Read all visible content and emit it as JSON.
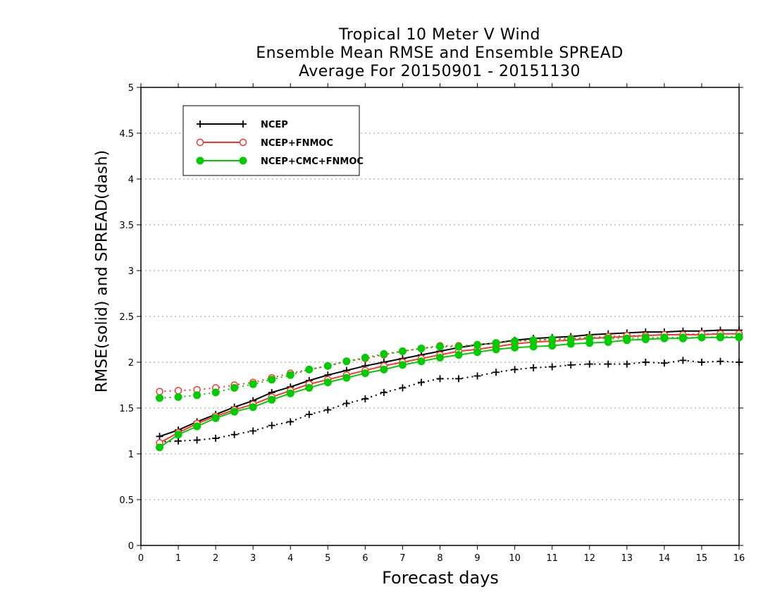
{
  "chart_data": {
    "type": "line",
    "title_lines": [
      "Tropical 10 Meter V Wind",
      "Ensemble Mean RMSE and Ensemble SPREAD",
      "Average For 20150901 - 20151130"
    ],
    "xlabel": "Forecast days",
    "ylabel": "RMSE(solid) and SPREAD(dash)",
    "xlim": [
      0,
      16
    ],
    "ylim": [
      0,
      5
    ],
    "xticks": [
      "0",
      "1",
      "2",
      "3",
      "4",
      "5",
      "6",
      "7",
      "8",
      "9",
      "10",
      "11",
      "12",
      "13",
      "14",
      "15",
      "16"
    ],
    "yticks": [
      "0",
      "0.5",
      "1",
      "1.5",
      "2",
      "2.5",
      "3",
      "3.5",
      "4",
      "4.5",
      "5"
    ],
    "grid": "horizontal dotted",
    "legend_position": "top-left",
    "x": [
      0.5,
      1,
      1.5,
      2,
      2.5,
      3,
      3.5,
      4,
      4.5,
      5,
      5.5,
      6,
      6.5,
      7,
      7.5,
      8,
      8.5,
      9,
      9.5,
      10,
      10.5,
      11,
      11.5,
      12,
      12.5,
      13,
      13.5,
      14,
      14.5,
      15,
      15.5,
      16
    ],
    "series": [
      {
        "name": "NCEP",
        "color": "#000000",
        "marker": "plus",
        "rmse": [
          1.19,
          1.26,
          1.35,
          1.43,
          1.51,
          1.58,
          1.67,
          1.73,
          1.8,
          1.86,
          1.91,
          1.96,
          2.0,
          2.04,
          2.08,
          2.12,
          2.16,
          2.19,
          2.21,
          2.24,
          2.26,
          2.27,
          2.28,
          2.3,
          2.31,
          2.32,
          2.33,
          2.33,
          2.34,
          2.34,
          2.35,
          2.35
        ],
        "spread": [
          1.13,
          1.14,
          1.15,
          1.17,
          1.21,
          1.25,
          1.31,
          1.35,
          1.43,
          1.48,
          1.55,
          1.6,
          1.67,
          1.72,
          1.78,
          1.82,
          1.82,
          1.85,
          1.89,
          1.92,
          1.94,
          1.95,
          1.97,
          1.98,
          1.98,
          1.98,
          2.0,
          1.99,
          2.02,
          2.0,
          2.01,
          2.0
        ]
      },
      {
        "name": "NCEP+FNMOC",
        "color": "#ff3333",
        "marker": "open-circle",
        "rmse": [
          1.12,
          1.23,
          1.33,
          1.41,
          1.48,
          1.54,
          1.62,
          1.69,
          1.76,
          1.81,
          1.86,
          1.91,
          1.96,
          2.0,
          2.04,
          2.08,
          2.12,
          2.14,
          2.17,
          2.2,
          2.22,
          2.23,
          2.24,
          2.26,
          2.27,
          2.28,
          2.29,
          2.3,
          2.3,
          2.3,
          2.31,
          2.31
        ],
        "spread": [
          1.68,
          1.69,
          1.7,
          1.72,
          1.75,
          1.78,
          1.83,
          1.88,
          1.92,
          1.96,
          2.01,
          2.04,
          2.08,
          2.12,
          2.15,
          2.18,
          2.18,
          2.19,
          2.21,
          2.23,
          2.24,
          2.25,
          2.26,
          2.27,
          2.28,
          2.29,
          2.29,
          2.3,
          2.3,
          2.31,
          2.31,
          2.31
        ]
      },
      {
        "name": "NCEP+CMC+FNMOC",
        "color": "#00cc00",
        "marker": "filled-circle",
        "rmse": [
          1.07,
          1.21,
          1.3,
          1.39,
          1.46,
          1.51,
          1.59,
          1.66,
          1.72,
          1.78,
          1.83,
          1.88,
          1.92,
          1.97,
          2.01,
          2.05,
          2.08,
          2.11,
          2.14,
          2.16,
          2.17,
          2.18,
          2.2,
          2.21,
          2.22,
          2.24,
          2.25,
          2.26,
          2.26,
          2.27,
          2.27,
          2.27
        ],
        "spread": [
          1.61,
          1.62,
          1.64,
          1.67,
          1.72,
          1.76,
          1.81,
          1.86,
          1.92,
          1.96,
          2.01,
          2.05,
          2.09,
          2.12,
          2.15,
          2.17,
          2.17,
          2.19,
          2.21,
          2.23,
          2.24,
          2.25,
          2.25,
          2.26,
          2.26,
          2.26,
          2.27,
          2.27,
          2.27,
          2.27,
          2.28,
          2.28
        ]
      }
    ]
  }
}
